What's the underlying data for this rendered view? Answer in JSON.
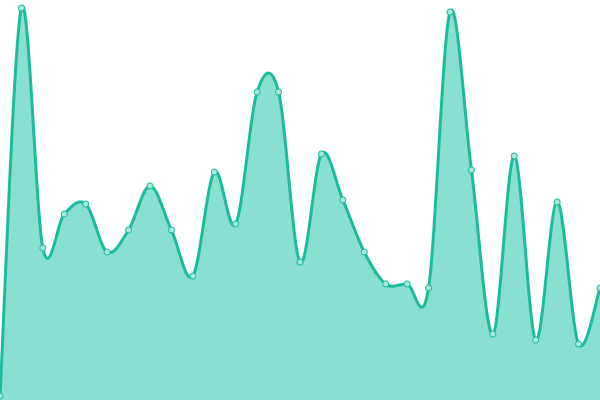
{
  "chart_data": {
    "type": "area",
    "title": "",
    "xlabel": "",
    "ylabel": "",
    "x": [
      0,
      1,
      2,
      3,
      4,
      5,
      6,
      7,
      8,
      9,
      10,
      11,
      12,
      13,
      14,
      15,
      16,
      17,
      18,
      19,
      20,
      21,
      22,
      23,
      24,
      25,
      26,
      27,
      28
    ],
    "values": [
      1,
      98,
      38,
      46.5,
      49,
      37,
      42.5,
      53.5,
      42.5,
      31,
      57,
      44,
      77,
      77,
      34.5,
      61.5,
      50,
      37,
      29,
      29,
      28,
      97,
      57.5,
      16.5,
      61,
      15,
      49.5,
      14,
      28
    ],
    "ylim": [
      0,
      100
    ],
    "axes_visible": false,
    "grid": false,
    "legend": "none",
    "curve": "smooth",
    "markers": true,
    "colors": {
      "line": "#1abc9c",
      "fill": "#8ae0cf",
      "marker_fill": "#a8ead9"
    }
  }
}
